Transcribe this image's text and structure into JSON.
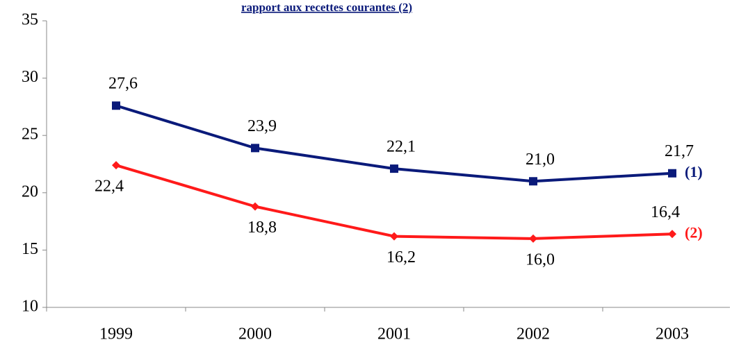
{
  "chart_data": {
    "type": "line",
    "title": "rapport aux recettes courantes (2)",
    "categories": [
      "1999",
      "2000",
      "2001",
      "2002",
      "2003"
    ],
    "series": [
      {
        "name": "(1)",
        "color": "#0a1a7a",
        "marker": "square",
        "values": [
          27.6,
          23.9,
          22.1,
          21.0,
          21.7
        ],
        "value_labels": [
          "27,6",
          "23,9",
          "22,1",
          "21,0",
          "21,7"
        ]
      },
      {
        "name": "(2)",
        "color": "#ff1a1a",
        "marker": "diamond",
        "values": [
          22.4,
          18.8,
          16.2,
          16.0,
          16.4
        ],
        "value_labels": [
          "22,4",
          "18,8",
          "16,2",
          "16,0",
          "16,4"
        ]
      }
    ],
    "ylim": [
      10,
      35
    ],
    "yticks": [
      10,
      15,
      20,
      25,
      30,
      35
    ],
    "grid": false
  }
}
